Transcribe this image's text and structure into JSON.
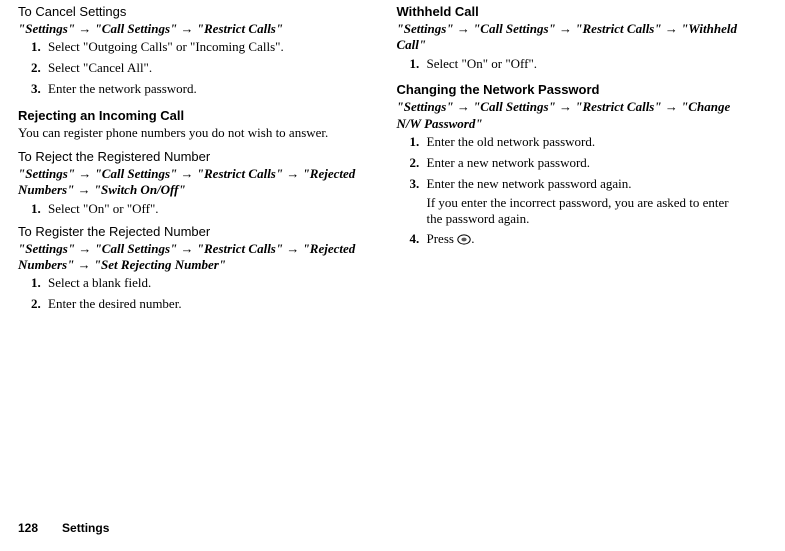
{
  "arrow_glyph": "→",
  "left": {
    "cancel": {
      "heading": "To Cancel Settings",
      "path_parts": [
        "\"Settings\"",
        "\"Call Settings\"",
        "\"Restrict Calls\""
      ],
      "steps": [
        "Select \"Outgoing Calls\" or \"Incoming Calls\".",
        "Select \"Cancel All\".",
        "Enter the network password."
      ]
    },
    "reject": {
      "heading": "Rejecting an Incoming Call",
      "intro": "You can register phone numbers you do not wish to answer.",
      "sub1": {
        "heading": "To Reject the Registered Number",
        "path_parts": [
          "\"Settings\"",
          "\"Call Settings\"",
          "\"Restrict Calls\"",
          "\"Rejected Numbers\"",
          "\"Switch On/Off\""
        ],
        "steps": [
          "Select \"On\" or \"Off\"."
        ]
      },
      "sub2": {
        "heading": "To Register the Rejected Number",
        "path_parts": [
          "\"Settings\"",
          "\"Call Settings\"",
          "\"Restrict Calls\"",
          "\"Rejected Numbers\"",
          "\"Set Rejecting Number\""
        ],
        "steps": [
          "Select a blank field.",
          "Enter the desired number."
        ]
      }
    }
  },
  "right": {
    "withheld": {
      "heading": "Withheld Call",
      "path_parts": [
        "\"Settings\"",
        "\"Call Settings\"",
        "\"Restrict Calls\"",
        "\"Withheld Call\""
      ],
      "steps": [
        "Select \"On\" or \"Off\"."
      ]
    },
    "changepw": {
      "heading": "Changing the Network Password",
      "path_parts": [
        "\"Settings\"",
        "\"Call Settings\"",
        "\"Restrict Calls\"",
        "\"Change N/W Password\""
      ],
      "steps": [
        "Enter the old network password.",
        "Enter a new network password.",
        "Enter the new network password again.",
        "Press "
      ],
      "step3_note": "If you enter the incorrect password, you are asked to enter the password again.",
      "press_suffix": "."
    }
  },
  "footer": {
    "page_number": "128",
    "section": "Settings"
  },
  "icon": {
    "fill": "#595959",
    "stroke": "#000000"
  }
}
